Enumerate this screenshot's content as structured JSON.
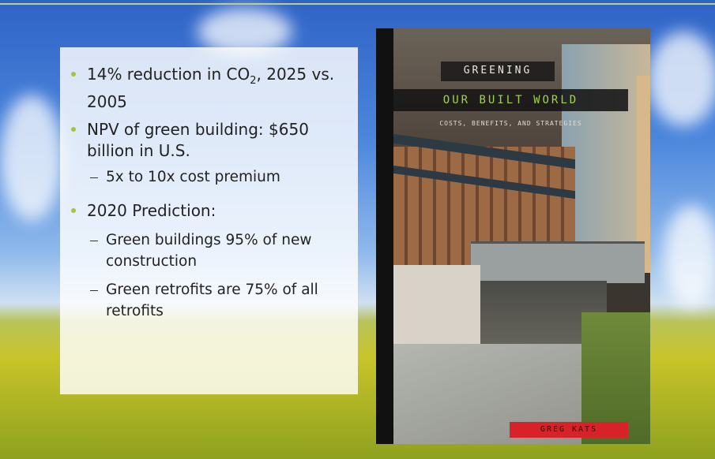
{
  "slide": {
    "bullets": [
      {
        "text_before": "14% reduction in CO",
        "subscript": "2",
        "text_after": ", 2025 vs. 2005"
      },
      {
        "text": "NPV of green building: $650 billion in U.S.",
        "sub": [
          "5x to 10x cost premium"
        ]
      },
      {
        "text": "2020 Prediction:",
        "sub": [
          "Green buildings 95% of new construction",
          "Green retrofits are 75% of all retrofits"
        ]
      }
    ],
    "book": {
      "title_line1": "GREENING",
      "title_line2": "OUR BUILT WORLD",
      "subtitle": "COSTS, BENEFITS, AND STRATEGIES",
      "author": "GREG KATS"
    }
  }
}
